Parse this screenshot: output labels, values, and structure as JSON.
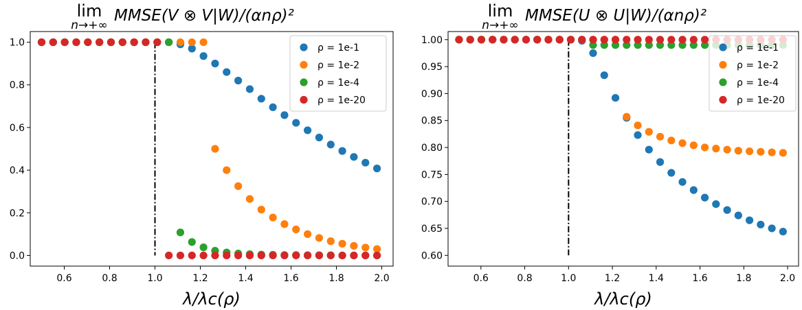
{
  "chart_data": [
    {
      "type": "scatter",
      "title": {
        "lim": "lim",
        "sub": "n→+∞",
        "main": "MMSE(V ⊗ V|W)/(αnρ)²"
      },
      "xlabel": "λ/λc(ρ)",
      "ylabel": "",
      "xlim": [
        0.45,
        2.05
      ],
      "ylim": [
        -0.05,
        1.05
      ],
      "xticks": [
        0.6,
        0.8,
        1.0,
        1.2,
        1.4,
        1.6,
        1.8,
        2.0
      ],
      "xtick_labels": [
        "0.6",
        "0.8",
        "1.0",
        "1.2",
        "1.4",
        "1.6",
        "1.8",
        "2.0"
      ],
      "yticks": [
        0.0,
        0.2,
        0.4,
        0.6,
        0.8,
        1.0
      ],
      "ytick_labels": [
        "0.0",
        "0.2",
        "0.4",
        "0.6",
        "0.8",
        "1.0"
      ],
      "vline": {
        "x": 1.0,
        "y0": 0.0,
        "y1": 1.0,
        "style": "dash-dot",
        "color": "#000000"
      },
      "legend": {
        "position": "top-right"
      },
      "series": [
        {
          "name": "ρ = 1e-1",
          "color": "#1f77b4",
          "x": [
            0.5,
            0.551,
            0.602,
            0.653,
            0.704,
            0.755,
            0.806,
            0.857,
            0.908,
            0.959,
            1.01,
            1.061,
            1.112,
            1.163,
            1.214,
            1.265,
            1.316,
            1.367,
            1.418,
            1.469,
            1.52,
            1.571,
            1.622,
            1.673,
            1.724,
            1.775,
            1.826,
            1.877,
            1.928,
            1.979
          ],
          "y": [
            1.0,
            1.0,
            1.0,
            1.0,
            1.0,
            1.0,
            1.0,
            1.0,
            1.0,
            1.0,
            1.0,
            1.0,
            0.99,
            0.97,
            0.935,
            0.9,
            0.86,
            0.82,
            0.78,
            0.735,
            0.695,
            0.658,
            0.622,
            0.587,
            0.553,
            0.52,
            0.49,
            0.462,
            0.435,
            0.408
          ]
        },
        {
          "name": "ρ = 1e-2",
          "color": "#ff7f0e",
          "x": [
            0.5,
            0.551,
            0.602,
            0.653,
            0.704,
            0.755,
            0.806,
            0.857,
            0.908,
            0.959,
            1.01,
            1.061,
            1.112,
            1.163,
            1.214,
            1.265,
            1.316,
            1.367,
            1.418,
            1.469,
            1.52,
            1.571,
            1.622,
            1.673,
            1.724,
            1.775,
            1.826,
            1.877,
            1.928,
            1.979
          ],
          "y": [
            1.0,
            1.0,
            1.0,
            1.0,
            1.0,
            1.0,
            1.0,
            1.0,
            1.0,
            1.0,
            1.0,
            1.0,
            1.0,
            1.0,
            1.0,
            0.5,
            0.4,
            0.325,
            0.265,
            0.215,
            0.178,
            0.147,
            0.122,
            0.1,
            0.082,
            0.067,
            0.055,
            0.045,
            0.037,
            0.03
          ]
        },
        {
          "name": "ρ = 1e-4",
          "color": "#2ca02c",
          "x": [
            0.5,
            0.551,
            0.602,
            0.653,
            0.704,
            0.755,
            0.806,
            0.857,
            0.908,
            0.959,
            1.01,
            1.061,
            1.112,
            1.163,
            1.214,
            1.265,
            1.316,
            1.367,
            1.418,
            1.469,
            1.52,
            1.571,
            1.622,
            1.673,
            1.724,
            1.775,
            1.826,
            1.877,
            1.928,
            1.979
          ],
          "y": [
            1.0,
            1.0,
            1.0,
            1.0,
            1.0,
            1.0,
            1.0,
            1.0,
            1.0,
            1.0,
            1.0,
            1.0,
            0.108,
            0.063,
            0.038,
            0.022,
            0.014,
            0.009,
            0.006,
            0.004,
            0.003,
            0.002,
            0.002,
            0.001,
            0.001,
            0.001,
            0.0,
            0.0,
            0.0,
            0.0
          ]
        },
        {
          "name": "ρ = 1e-20",
          "color": "#d62728",
          "x": [
            0.5,
            0.551,
            0.602,
            0.653,
            0.704,
            0.755,
            0.806,
            0.857,
            0.908,
            0.959,
            1.01,
            1.061,
            1.112,
            1.163,
            1.214,
            1.265,
            1.316,
            1.367,
            1.418,
            1.469,
            1.52,
            1.571,
            1.622,
            1.673,
            1.724,
            1.775,
            1.826,
            1.877,
            1.928,
            1.979
          ],
          "y": [
            1.0,
            1.0,
            1.0,
            1.0,
            1.0,
            1.0,
            1.0,
            1.0,
            1.0,
            1.0,
            1.0,
            0.0,
            0.0,
            0.0,
            0.0,
            0.0,
            0.0,
            0.0,
            0.0,
            0.0,
            0.0,
            0.0,
            0.0,
            0.0,
            0.0,
            0.0,
            0.0,
            0.0,
            0.0,
            0.0
          ]
        }
      ]
    },
    {
      "type": "scatter",
      "title": {
        "lim": "lim",
        "sub": "n→+∞",
        "main": "MMSE(U ⊗ U|W)/(αnρ)²"
      },
      "xlabel": "λ/λc(ρ)",
      "ylabel": "",
      "xlim": [
        0.45,
        2.05
      ],
      "ylim": [
        0.58,
        1.015
      ],
      "xticks": [
        0.6,
        0.8,
        1.0,
        1.2,
        1.4,
        1.6,
        1.8,
        2.0
      ],
      "xtick_labels": [
        "0.6",
        "0.8",
        "1.0",
        "1.2",
        "1.4",
        "1.6",
        "1.8",
        "2.0"
      ],
      "yticks": [
        0.6,
        0.65,
        0.7,
        0.75,
        0.8,
        0.85,
        0.9,
        0.95,
        1.0
      ],
      "ytick_labels": [
        "0.60",
        "0.65",
        "0.70",
        "0.75",
        "0.80",
        "0.85",
        "0.90",
        "0.95",
        "1.00"
      ],
      "vline": {
        "x": 1.0,
        "y0": 0.6,
        "y1": 1.0,
        "style": "dash-dot",
        "color": "#000000"
      },
      "legend": {
        "position": "top-right"
      },
      "series": [
        {
          "name": "ρ = 1e-1",
          "color": "#1f77b4",
          "x": [
            0.5,
            0.551,
            0.602,
            0.653,
            0.704,
            0.755,
            0.806,
            0.857,
            0.908,
            0.959,
            1.01,
            1.061,
            1.112,
            1.163,
            1.214,
            1.265,
            1.316,
            1.367,
            1.418,
            1.469,
            1.52,
            1.571,
            1.622,
            1.673,
            1.724,
            1.775,
            1.826,
            1.877,
            1.928,
            1.979
          ],
          "y": [
            1.0,
            1.0,
            1.0,
            1.0,
            1.0,
            1.0,
            1.0,
            1.0,
            1.0,
            1.0,
            1.0,
            0.998,
            0.975,
            0.934,
            0.892,
            0.855,
            0.823,
            0.796,
            0.773,
            0.753,
            0.736,
            0.721,
            0.707,
            0.695,
            0.684,
            0.674,
            0.665,
            0.657,
            0.65,
            0.644
          ]
        },
        {
          "name": "ρ = 1e-2",
          "color": "#ff7f0e",
          "x": [
            0.5,
            0.551,
            0.602,
            0.653,
            0.704,
            0.755,
            0.806,
            0.857,
            0.908,
            0.959,
            1.01,
            1.061,
            1.112,
            1.163,
            1.214,
            1.265,
            1.316,
            1.367,
            1.418,
            1.469,
            1.52,
            1.571,
            1.622,
            1.673,
            1.724,
            1.775,
            1.826,
            1.877,
            1.928,
            1.979
          ],
          "y": [
            1.0,
            1.0,
            1.0,
            1.0,
            1.0,
            1.0,
            1.0,
            1.0,
            1.0,
            1.0,
            1.0,
            1.0,
            1.0,
            1.0,
            1.0,
            0.857,
            0.841,
            0.829,
            0.82,
            0.813,
            0.808,
            0.804,
            0.8,
            0.798,
            0.796,
            0.794,
            0.793,
            0.792,
            0.791,
            0.79
          ]
        },
        {
          "name": "ρ = 1e-4",
          "color": "#2ca02c",
          "x": [
            0.5,
            0.551,
            0.602,
            0.653,
            0.704,
            0.755,
            0.806,
            0.857,
            0.908,
            0.959,
            1.01,
            1.061,
            1.112,
            1.163,
            1.214,
            1.265,
            1.316,
            1.367,
            1.418,
            1.469,
            1.52,
            1.571,
            1.622,
            1.673,
            1.724,
            1.775,
            1.826,
            1.877,
            1.928,
            1.979
          ],
          "y": [
            1.0,
            1.0,
            1.0,
            1.0,
            1.0,
            1.0,
            1.0,
            1.0,
            1.0,
            1.0,
            1.0,
            1.0,
            0.99,
            0.99,
            0.99,
            0.99,
            0.99,
            0.99,
            0.99,
            0.99,
            0.99,
            0.99,
            0.99,
            0.99,
            0.99,
            0.99,
            0.99,
            0.99,
            0.99,
            0.99
          ]
        },
        {
          "name": "ρ = 1e-20",
          "color": "#d62728",
          "x": [
            0.5,
            0.551,
            0.602,
            0.653,
            0.704,
            0.755,
            0.806,
            0.857,
            0.908,
            0.959,
            1.01,
            1.061,
            1.112,
            1.163,
            1.214,
            1.265,
            1.316,
            1.367,
            1.418,
            1.469,
            1.52,
            1.571,
            1.622,
            1.673,
            1.724,
            1.775,
            1.826,
            1.877,
            1.928,
            1.979
          ],
          "y": [
            1.0,
            1.0,
            1.0,
            1.0,
            1.0,
            1.0,
            1.0,
            1.0,
            1.0,
            1.0,
            1.0,
            1.0,
            1.0,
            1.0,
            1.0,
            1.0,
            1.0,
            1.0,
            1.0,
            1.0,
            1.0,
            1.0,
            1.0,
            1.0,
            1.0,
            1.0,
            1.0,
            1.0,
            1.0,
            1.0
          ]
        }
      ]
    }
  ]
}
